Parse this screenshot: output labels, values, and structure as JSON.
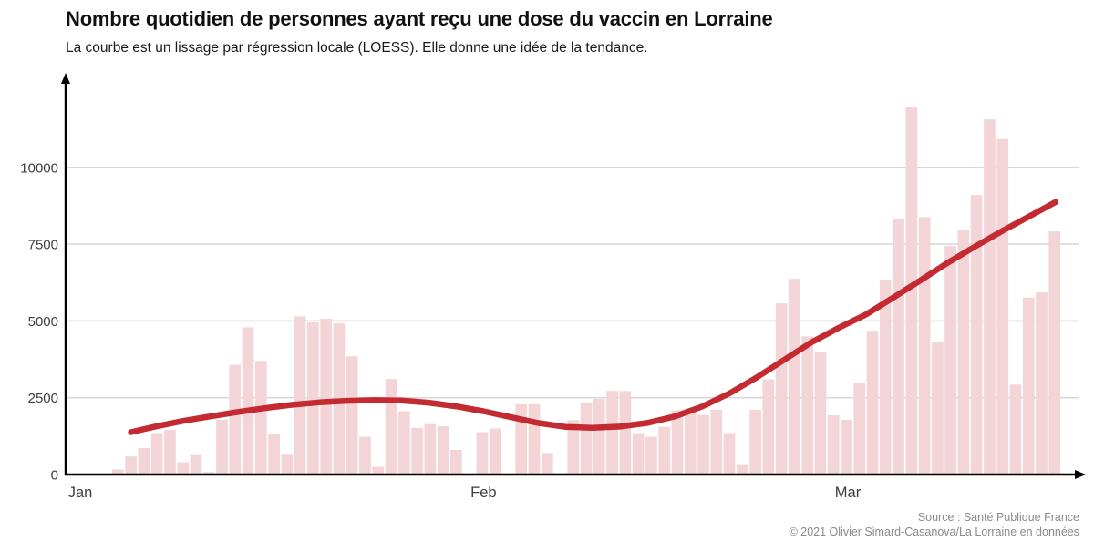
{
  "header": {
    "title": "Nombre quotidien de personnes ayant reçu une dose du vaccin en Lorraine",
    "subtitle": "La courbe est un lissage par régression locale (LOESS). Elle donne une idée de la tendance."
  },
  "footer": {
    "source_line1": "Source : Santé Publique France",
    "source_line2": "© 2021 Olivier Simard-Casanova/La Lorraine en données"
  },
  "colors": {
    "bar": "#f3d4d7",
    "curve": "#c42a31",
    "grid": "#d8d8d8",
    "axis": "#000000",
    "tick_label": "#3d3d3d",
    "source_text": "#8a8a8a"
  },
  "chart_data": {
    "type": "bar",
    "title": "Nombre quotidien de personnes ayant reçu une dose du vaccin en Lorraine",
    "subtitle": "La courbe est un lissage par régression locale (LOESS). Elle donne une idée de la tendance.",
    "xlabel": "",
    "ylabel": "",
    "grid": true,
    "legend": "none",
    "ylim": [
      0,
      13000
    ],
    "y_ticks": [
      0,
      2500,
      5000,
      7500,
      10000
    ],
    "x_ticks": [
      {
        "label": "Jan",
        "day": -1.45
      },
      {
        "label": "Feb",
        "day": 29.55
      },
      {
        "label": "Mar",
        "day": 57.55
      }
    ],
    "dates": [
      "2021-01-03",
      "2021-01-04",
      "2021-01-05",
      "2021-01-06",
      "2021-01-07",
      "2021-01-08",
      "2021-01-09",
      "2021-01-10",
      "2021-01-11",
      "2021-01-12",
      "2021-01-13",
      "2021-01-14",
      "2021-01-15",
      "2021-01-16",
      "2021-01-17",
      "2021-01-18",
      "2021-01-19",
      "2021-01-20",
      "2021-01-21",
      "2021-01-22",
      "2021-01-23",
      "2021-01-24",
      "2021-01-25",
      "2021-01-26",
      "2021-01-27",
      "2021-01-28",
      "2021-01-29",
      "2021-01-30",
      "2021-01-31",
      "2021-02-01",
      "2021-02-02",
      "2021-02-03",
      "2021-02-04",
      "2021-02-05",
      "2021-02-06",
      "2021-02-07",
      "2021-02-08",
      "2021-02-09",
      "2021-02-10",
      "2021-02-11",
      "2021-02-12",
      "2021-02-13",
      "2021-02-14",
      "2021-02-15",
      "2021-02-16",
      "2021-02-17",
      "2021-02-18",
      "2021-02-19",
      "2021-02-20",
      "2021-02-21",
      "2021-02-22",
      "2021-02-23",
      "2021-02-24",
      "2021-02-25",
      "2021-02-26",
      "2021-02-27",
      "2021-02-28",
      "2021-03-01",
      "2021-03-02",
      "2021-03-03",
      "2021-03-04",
      "2021-03-05",
      "2021-03-06",
      "2021-03-07",
      "2021-03-08",
      "2021-03-09",
      "2021-03-10",
      "2021-03-11",
      "2021-03-12",
      "2021-03-13",
      "2021-03-14",
      "2021-03-15",
      "2021-03-16"
    ],
    "values": [
      170,
      590,
      860,
      1350,
      1450,
      400,
      630,
      80,
      1780,
      3570,
      4790,
      3700,
      1320,
      645,
      5150,
      4950,
      5070,
      4920,
      3850,
      1230,
      250,
      3110,
      2060,
      1520,
      1640,
      1570,
      800,
      30,
      1380,
      1500,
      30,
      2290,
      2290,
      700,
      40,
      1770,
      2350,
      2460,
      2720,
      2720,
      1350,
      1230,
      1550,
      2090,
      1990,
      1940,
      2110,
      1350,
      310,
      2110,
      3100,
      5570,
      6370,
      4500,
      4000,
      1930,
      1780,
      2990,
      4680,
      6350,
      8320,
      11950,
      8380,
      4300,
      7440,
      7980,
      9100,
      11560,
      10920,
      2930,
      5760,
      5930,
      7915
    ],
    "loess_series_name": "LOESS",
    "loess": [
      [
        2.0,
        1380
      ],
      [
        3.85,
        1560
      ],
      [
        5.95,
        1740
      ],
      [
        8.05,
        1890
      ],
      [
        10.16,
        2030
      ],
      [
        12.26,
        2160
      ],
      [
        14.36,
        2270
      ],
      [
        16.46,
        2350
      ],
      [
        18.57,
        2400
      ],
      [
        20.67,
        2420
      ],
      [
        22.77,
        2410
      ],
      [
        24.87,
        2340
      ],
      [
        26.97,
        2220
      ],
      [
        29.08,
        2060
      ],
      [
        31.18,
        1870
      ],
      [
        33.28,
        1680
      ],
      [
        35.38,
        1550
      ],
      [
        37.49,
        1520
      ],
      [
        39.59,
        1560
      ],
      [
        41.69,
        1680
      ],
      [
        43.79,
        1890
      ],
      [
        45.89,
        2210
      ],
      [
        48.0,
        2640
      ],
      [
        50.1,
        3160
      ],
      [
        52.2,
        3730
      ],
      [
        54.3,
        4300
      ],
      [
        56.4,
        4775
      ],
      [
        58.5,
        5210
      ],
      [
        60.6,
        5760
      ],
      [
        62.71,
        6330
      ],
      [
        64.81,
        6900
      ],
      [
        66.91,
        7430
      ],
      [
        69.01,
        7940
      ],
      [
        71.11,
        8420
      ],
      [
        73.07,
        8870
      ]
    ]
  }
}
